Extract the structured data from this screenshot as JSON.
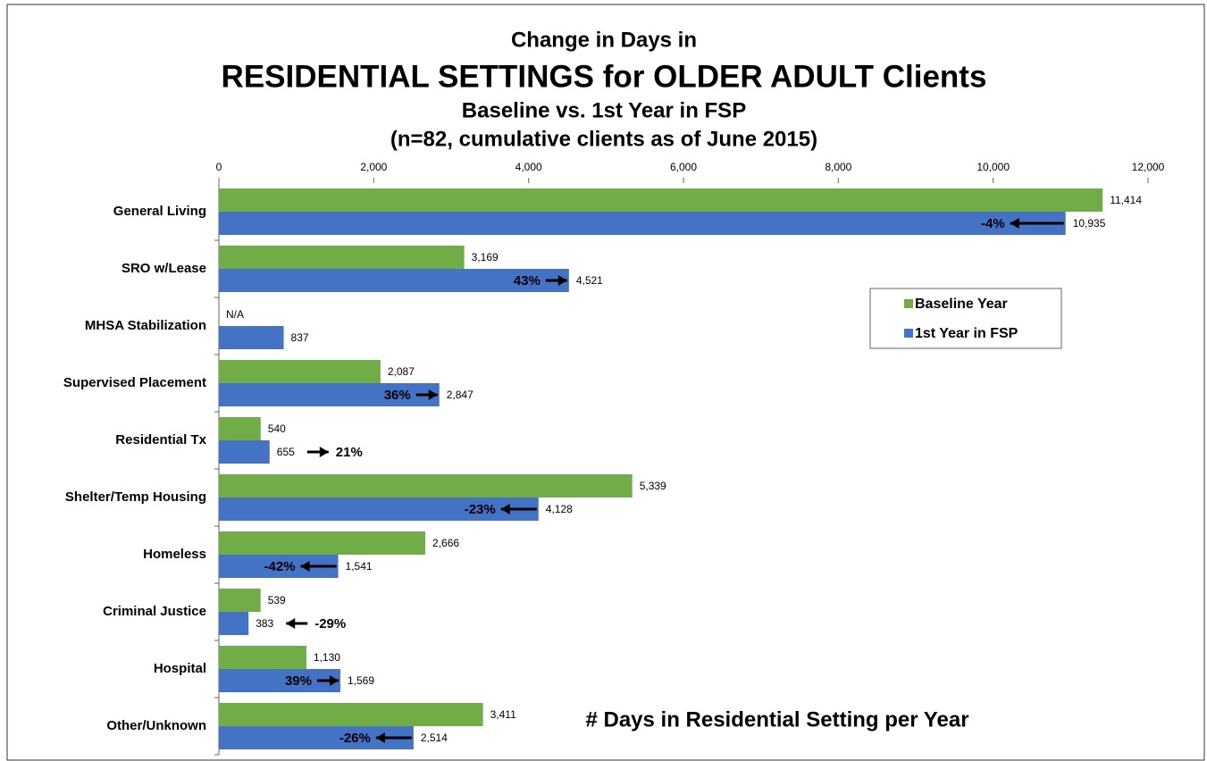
{
  "chart_data": {
    "type": "hbar",
    "title": "Change in Days in",
    "headline": "RESIDENTIAL SETTINGS for OLDER ADULT Clients",
    "subtitle": "Baseline vs. 1st Year in FSP",
    "note": "(n=82, cumulative clients as of June 2015)",
    "x_label": "# Days in Residential Setting per Year",
    "categories": [
      "General Living",
      "SRO w/Lease",
      "MHSA Stabilization",
      "Supervised Placement",
      "Residential Tx",
      "Shelter/Temp Housing",
      "Homeless",
      "Criminal Justice",
      "Hospital",
      "Other/Unknown"
    ],
    "series": [
      {
        "name": "Baseline Year",
        "color": "#70ad47",
        "values": [
          11414,
          3169,
          null,
          2087,
          540,
          5339,
          2666,
          539,
          1130,
          3411
        ],
        "value_labels": [
          "11,414",
          "3,169",
          "N/A",
          "2,087",
          "540",
          "5,339",
          "2,666",
          "539",
          "1,130",
          "3,411"
        ]
      },
      {
        "name": "1st Year in FSP",
        "color": "#4472c4",
        "values": [
          10935,
          4521,
          837,
          2847,
          655,
          4128,
          1541,
          383,
          1569,
          2514
        ],
        "value_labels": [
          "10,935",
          "4,521",
          "837",
          "2,847",
          "655",
          "4,128",
          "1,541",
          "383",
          "1,569",
          "2,514"
        ]
      }
    ],
    "changes": [
      -4,
      43,
      null,
      36,
      21,
      -23,
      -42,
      -29,
      39,
      -26
    ],
    "change_labels": [
      "-4%",
      "43%",
      null,
      "36%",
      "21%",
      "-23%",
      "-42%",
      "-29%",
      "39%",
      "-26%"
    ],
    "xlim": [
      0,
      12000
    ],
    "xticks": [
      0,
      {
        "value": 2000,
        "label": "2,000"
      },
      {
        "value": 4000,
        "label": "4,000"
      },
      {
        "value": 6000,
        "label": "6,000"
      },
      {
        "value": 8000,
        "label": "8,000"
      },
      {
        "value": 10000,
        "label": "10,000"
      },
      {
        "value": 12000,
        "label": "12,000"
      }
    ],
    "legend": "upper right",
    "grid": false
  }
}
